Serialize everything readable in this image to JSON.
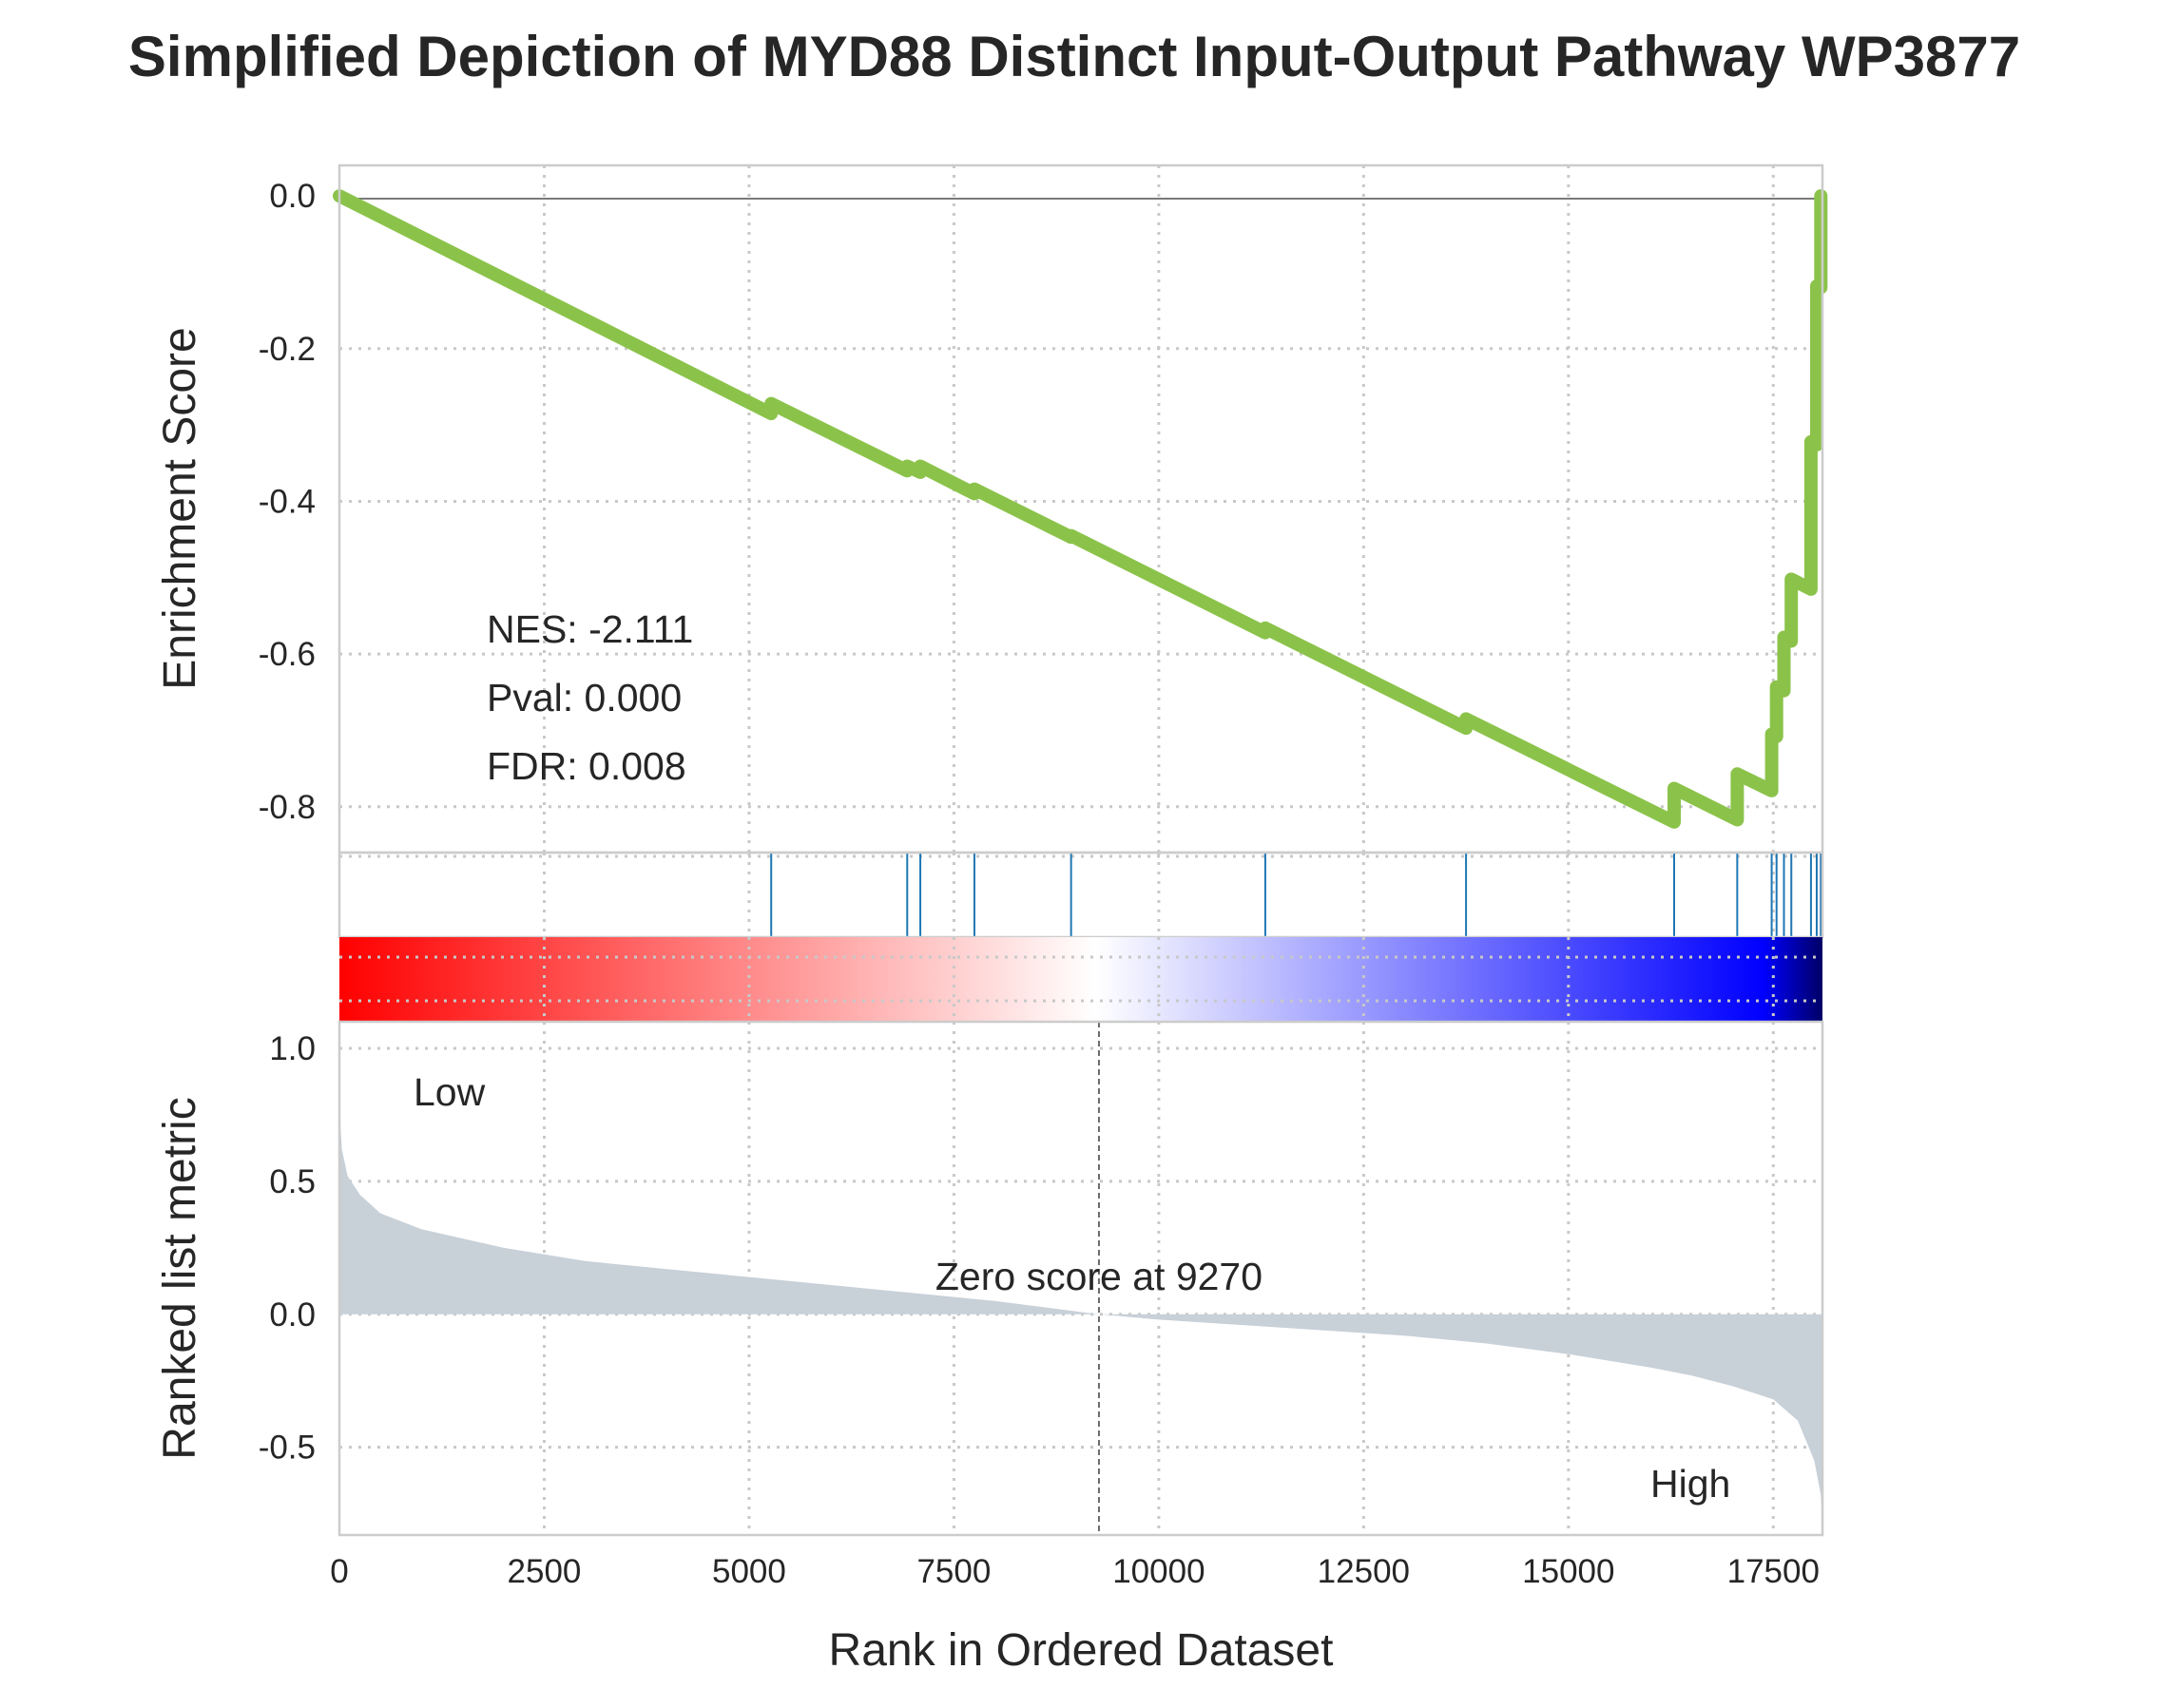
{
  "chart_data": {
    "type": "line",
    "title": "Simplified Depiction of MYD88 Distinct Input-Output Pathway WP3877",
    "xlabel": "Rank in Ordered Dataset",
    "xlim": [
      0,
      18100
    ],
    "x_ticks": [
      "0",
      "2500",
      "5000",
      "7500",
      "10000",
      "12500",
      "15000",
      "17500"
    ],
    "enrichment_panel": {
      "ylabel": "Enrichment Score",
      "ylim": [
        -0.86,
        0.04
      ],
      "y_ticks": [
        "0.0",
        "-0.2",
        "-0.4",
        "-0.6",
        "-0.8"
      ],
      "line_color": "#8bc34a",
      "stats": {
        "nes": "NES: -2.111",
        "pval": "Pval: 0.000",
        "fdr": "FDR: 0.008"
      },
      "running_es": [
        [
          0,
          0.0
        ],
        [
          5270,
          -0.285
        ],
        [
          5270,
          -0.272
        ],
        [
          6930,
          -0.36
        ],
        [
          6930,
          -0.354
        ],
        [
          7090,
          -0.362
        ],
        [
          7090,
          -0.354
        ],
        [
          7750,
          -0.39
        ],
        [
          7750,
          -0.384
        ],
        [
          8930,
          -0.447
        ],
        [
          8930,
          -0.445
        ],
        [
          11300,
          -0.572
        ],
        [
          11300,
          -0.566
        ],
        [
          13750,
          -0.697
        ],
        [
          13750,
          -0.685
        ],
        [
          16290,
          -0.82
        ],
        [
          16290,
          -0.776
        ],
        [
          17060,
          -0.817
        ],
        [
          17060,
          -0.757
        ],
        [
          17480,
          -0.779
        ],
        [
          17480,
          -0.705
        ],
        [
          17540,
          -0.708
        ],
        [
          17540,
          -0.643
        ],
        [
          17630,
          -0.648
        ],
        [
          17630,
          -0.578
        ],
        [
          17720,
          -0.583
        ],
        [
          17720,
          -0.502
        ],
        [
          17960,
          -0.515
        ],
        [
          17960,
          -0.322
        ],
        [
          18030,
          -0.326
        ],
        [
          18030,
          -0.118
        ],
        [
          18080,
          -0.12
        ],
        [
          18080,
          0.0
        ]
      ]
    },
    "hits": [
      5270,
      6930,
      7090,
      7750,
      8930,
      11300,
      13750,
      16290,
      17060,
      17480,
      17540,
      17630,
      17720,
      17960,
      18030,
      18080
    ],
    "colorbar": {
      "colors": [
        "#ff0000",
        "#ffffff",
        "#0000ff",
        "#000066"
      ]
    },
    "ranked_panel": {
      "ylabel": "Ranked list metric",
      "ylim": [
        -0.83,
        1.1
      ],
      "y_ticks": [
        "1.0",
        "0.5",
        "0.0",
        "-0.5"
      ],
      "fill_color": "#c8d0d8",
      "zero_score_x": 9270,
      "zero_label": "Zero score at 9270",
      "low_label": "Low",
      "high_label": "High",
      "low_color": "#ff0000",
      "high_color": "#0000ff",
      "metric_points": [
        [
          0,
          0.78
        ],
        [
          30,
          0.62
        ],
        [
          100,
          0.52
        ],
        [
          250,
          0.45
        ],
        [
          500,
          0.38
        ],
        [
          1000,
          0.32
        ],
        [
          2000,
          0.25
        ],
        [
          3000,
          0.2
        ],
        [
          4000,
          0.17
        ],
        [
          5000,
          0.14
        ],
        [
          6000,
          0.11
        ],
        [
          7000,
          0.08
        ],
        [
          8000,
          0.05
        ],
        [
          9270,
          0.0
        ],
        [
          10000,
          -0.02
        ],
        [
          11000,
          -0.04
        ],
        [
          12000,
          -0.06
        ],
        [
          13000,
          -0.08
        ],
        [
          14000,
          -0.11
        ],
        [
          15000,
          -0.15
        ],
        [
          16000,
          -0.2
        ],
        [
          16500,
          -0.23
        ],
        [
          17000,
          -0.27
        ],
        [
          17500,
          -0.32
        ],
        [
          17800,
          -0.4
        ],
        [
          18000,
          -0.55
        ],
        [
          18080,
          -0.68
        ],
        [
          18100,
          -0.8
        ]
      ]
    }
  }
}
